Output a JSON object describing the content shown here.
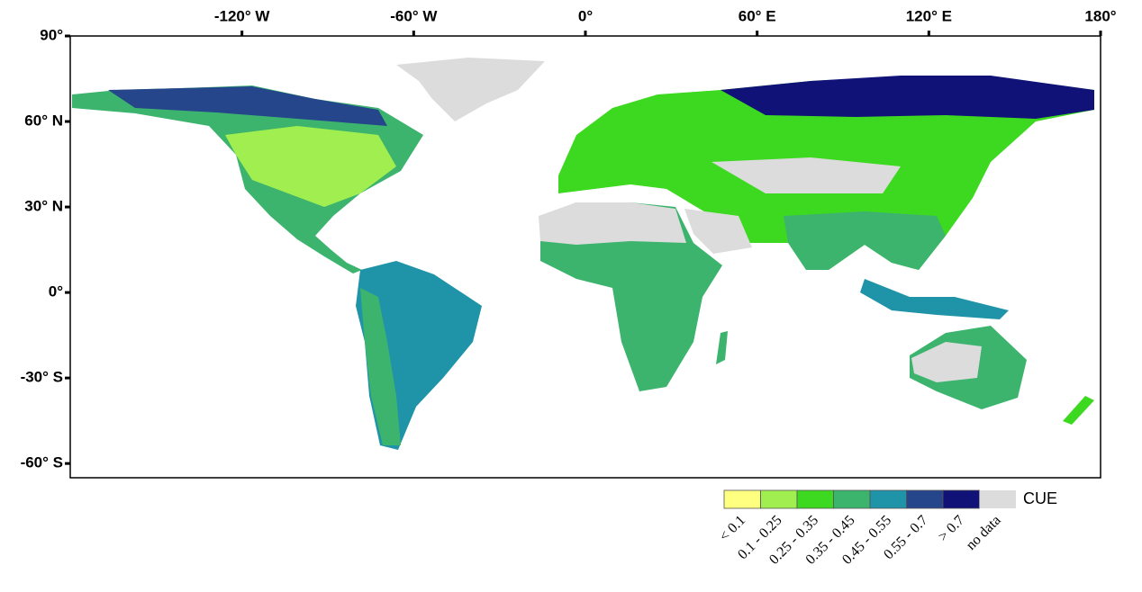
{
  "map": {
    "xlim": [
      -180,
      180
    ],
    "ylim": [
      -65,
      90
    ],
    "xticks": [
      {
        "value": -120,
        "label": "-120° W"
      },
      {
        "value": -60,
        "label": "-60° W"
      },
      {
        "value": 0,
        "label": "0°"
      },
      {
        "value": 60,
        "label": "60° E"
      },
      {
        "value": 120,
        "label": "120° E"
      },
      {
        "value": 180,
        "label": "180°"
      }
    ],
    "yticks": [
      {
        "value": 90,
        "label": "90°"
      },
      {
        "value": 60,
        "label": "60° N"
      },
      {
        "value": 30,
        "label": "30° N"
      },
      {
        "value": 0,
        "label": "0°"
      },
      {
        "value": -30,
        "label": "-30° S"
      },
      {
        "value": -60,
        "label": "-60° S"
      }
    ]
  },
  "legend": {
    "title": "CUE",
    "items": [
      {
        "label": "< 0.1",
        "color": "#ffff80"
      },
      {
        "label": "0.1 - 0.25",
        "color": "#a0ee50"
      },
      {
        "label": "0.25 - 0.35",
        "color": "#3dd920"
      },
      {
        "label": "0.35 - 0.45",
        "color": "#3cb46e"
      },
      {
        "label": "0.45 - 0.55",
        "color": "#1f93a8"
      },
      {
        "label": "0.55 - 0.7",
        "color": "#26468c"
      },
      {
        "label": "> 0.7",
        "color": "#101277"
      },
      {
        "label": "no data",
        "color": "#dcdcdc"
      }
    ]
  }
}
